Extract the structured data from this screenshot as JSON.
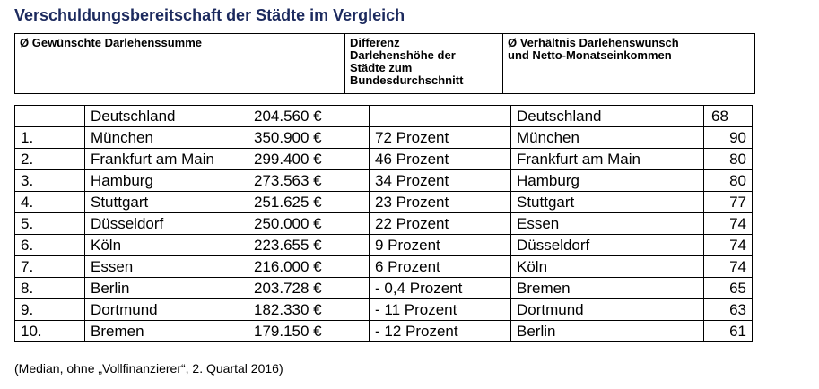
{
  "title": "Verschuldungsbereitschaft der Städte im Vergleich",
  "header": {
    "col1": "Ø Gewünschte Darlehenssumme",
    "col2_lines": [
      "Differenz",
      "Darlehenshöhe der",
      "Städte zum",
      "Bundesdurchschnitt"
    ],
    "col3_lines": [
      "Ø Verhältnis Darlehenswunsch",
      "und Netto-Monatseinkommen"
    ]
  },
  "rows": [
    {
      "rank": "",
      "city": "Deutschland",
      "amount": "204.560 €",
      "diff": "",
      "city2": "Deutschland",
      "ratio": "68"
    },
    {
      "rank": "1.",
      "city": "München",
      "amount": "350.900 €",
      "diff": "72 Prozent",
      "city2": "München",
      "ratio": "90"
    },
    {
      "rank": "2.",
      "city": "Frankfurt am Main",
      "amount": "299.400 €",
      "diff": "46 Prozent",
      "city2": "Frankfurt am Main",
      "ratio": "80"
    },
    {
      "rank": "3.",
      "city": "Hamburg",
      "amount": "273.563 €",
      "diff": "34 Prozent",
      "city2": "Hamburg",
      "ratio": "80"
    },
    {
      "rank": "4.",
      "city": "Stuttgart",
      "amount": "251.625 €",
      "diff": "23 Prozent",
      "city2": "Stuttgart",
      "ratio": "77"
    },
    {
      "rank": "5.",
      "city": "Düsseldorf",
      "amount": "250.000 €",
      "diff": "22 Prozent",
      "city2": "Essen",
      "ratio": "74"
    },
    {
      "rank": "6.",
      "city": "Köln",
      "amount": "223.655 €",
      "diff": "9 Prozent",
      "city2": "Düsseldorf",
      "ratio": "74"
    },
    {
      "rank": "7.",
      "city": "Essen",
      "amount": "216.000 €",
      "diff": "6 Prozent",
      "city2": "Köln",
      "ratio": "74"
    },
    {
      "rank": "8.",
      "city": "Berlin",
      "amount": "203.728 €",
      "diff": "- 0,4 Prozent",
      "city2": "Bremen",
      "ratio": "65"
    },
    {
      "rank": "9.",
      "city": "Dortmund",
      "amount": "182.330 €",
      "diff": "- 11 Prozent",
      "city2": "Dortmund",
      "ratio": "63"
    },
    {
      "rank": "10.",
      "city": "Bremen",
      "amount": "179.150 €",
      "diff": "- 12 Prozent",
      "city2": "Berlin",
      "ratio": "61"
    }
  ],
  "footnote": "(Median, ohne „Vollfinanzierer“, 2. Quartal 2016)"
}
